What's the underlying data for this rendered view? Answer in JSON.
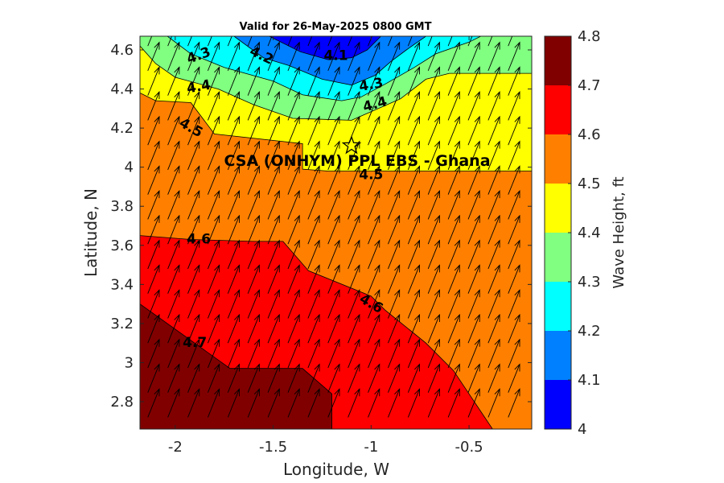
{
  "chart_data": {
    "type": "heatmap",
    "title": "Valid for 26-May-2025 0800 GMT",
    "xlabel": "Longitude, W",
    "ylabel": "Latitude, N",
    "colorbar_label": "Wave Height, ft",
    "xlim": [
      -2.18,
      -0.18
    ],
    "ylim": [
      2.66,
      4.67
    ],
    "x_ticks": [
      -2,
      -1.5,
      -1,
      -0.5
    ],
    "x_tick_labels": [
      "-2",
      "-1.5",
      "-1",
      "-0.5"
    ],
    "y_ticks": [
      2.8,
      3,
      3.2,
      3.4,
      3.6,
      3.8,
      4,
      4.2,
      4.4,
      4.6
    ],
    "y_tick_labels": [
      "2.8",
      "3",
      "3.2",
      "3.4",
      "3.6",
      "3.8",
      "4",
      "4.2",
      "4.4",
      "4.6"
    ],
    "colorbar_ticks": [
      4,
      4.1,
      4.2,
      4.3,
      4.4,
      4.5,
      4.6,
      4.7,
      4.8
    ],
    "colorbar_tick_labels": [
      "4",
      "4.1",
      "4.2",
      "4.3",
      "4.4",
      "4.5",
      "4.6",
      "4.7",
      "4.8"
    ],
    "levels": [
      4.0,
      4.1,
      4.2,
      4.3,
      4.4,
      4.5,
      4.6,
      4.7,
      4.8
    ],
    "colors": [
      "#0000ff",
      "#0080ff",
      "#00ffff",
      "#80ff80",
      "#ffff00",
      "#ff8000",
      "#ff0000",
      "#800000"
    ],
    "contour_bands": [
      {
        "level_min": 4.7,
        "color": "#800000",
        "polygon": [
          [
            -2.18,
            2.66
          ],
          [
            -2.18,
            3.3
          ],
          [
            -1.72,
            2.97
          ],
          [
            -1.35,
            2.97
          ],
          [
            -1.2,
            2.84
          ],
          [
            -1.2,
            2.66
          ]
        ]
      },
      {
        "level_min": 4.6,
        "color": "#ff0000",
        "polygon": [
          [
            -2.18,
            2.66
          ],
          [
            -2.18,
            3.65
          ],
          [
            -1.92,
            3.63
          ],
          [
            -1.6,
            3.62
          ],
          [
            -1.45,
            3.62
          ],
          [
            -1.32,
            3.47
          ],
          [
            -1.0,
            3.34
          ],
          [
            -0.93,
            3.27
          ],
          [
            -0.72,
            3.1
          ],
          [
            -0.58,
            2.96
          ],
          [
            -0.38,
            2.66
          ]
        ]
      },
      {
        "level_min": 4.5,
        "color": "#ff8000",
        "polygon": [
          [
            -2.18,
            2.66
          ],
          [
            -2.18,
            4.38
          ],
          [
            -2.1,
            4.34
          ],
          [
            -1.92,
            4.33
          ],
          [
            -1.8,
            4.17
          ],
          [
            -1.35,
            4.12
          ],
          [
            -1.35,
            3.99
          ],
          [
            -1.22,
            3.98
          ],
          [
            -0.18,
            3.98
          ],
          [
            -0.18,
            2.66
          ]
        ]
      },
      {
        "level_min": 4.4,
        "color": "#ffff00",
        "polygon": [
          [
            -2.18,
            2.66
          ],
          [
            -2.18,
            4.62
          ],
          [
            -2.1,
            4.53
          ],
          [
            -2.0,
            4.46
          ],
          [
            -1.78,
            4.4
          ],
          [
            -1.6,
            4.32
          ],
          [
            -1.4,
            4.25
          ],
          [
            -1.1,
            4.24
          ],
          [
            -0.85,
            4.35
          ],
          [
            -0.72,
            4.45
          ],
          [
            -0.6,
            4.48
          ],
          [
            -0.18,
            4.48
          ],
          [
            -0.18,
            2.66
          ]
        ]
      },
      {
        "level_min": 4.3,
        "color": "#80ff80",
        "polygon": [
          [
            -2.18,
            2.66
          ],
          [
            -2.18,
            4.67
          ],
          [
            -2.04,
            4.67
          ],
          [
            -1.92,
            4.58
          ],
          [
            -1.75,
            4.51
          ],
          [
            -1.5,
            4.44
          ],
          [
            -1.35,
            4.37
          ],
          [
            -1.15,
            4.34
          ],
          [
            -1.05,
            4.36
          ],
          [
            -0.92,
            4.43
          ],
          [
            -0.78,
            4.51
          ],
          [
            -0.67,
            4.58
          ],
          [
            -0.5,
            4.64
          ],
          [
            -0.44,
            4.67
          ],
          [
            -0.18,
            4.67
          ],
          [
            -0.18,
            2.66
          ]
        ]
      },
      {
        "level_min": 4.2,
        "color": "#00ffff",
        "polygon": [
          [
            -2.18,
            2.66
          ],
          [
            -2.18,
            4.67
          ],
          [
            -1.7,
            4.67
          ],
          [
            -1.55,
            4.56
          ],
          [
            -1.42,
            4.52
          ],
          [
            -1.25,
            4.45
          ],
          [
            -1.1,
            4.42
          ],
          [
            -0.98,
            4.47
          ],
          [
            -0.9,
            4.54
          ],
          [
            -0.82,
            4.6
          ],
          [
            -0.72,
            4.67
          ],
          [
            -0.18,
            4.67
          ],
          [
            -0.18,
            2.66
          ]
        ]
      },
      {
        "level_min": 4.1,
        "color": "#0080ff",
        "polygon": [
          [
            -2.18,
            2.66
          ],
          [
            -2.18,
            4.67
          ],
          [
            -1.52,
            4.67
          ],
          [
            -1.36,
            4.59
          ],
          [
            -1.22,
            4.55
          ],
          [
            -1.1,
            4.56
          ],
          [
            -1.02,
            4.6
          ],
          [
            -0.95,
            4.67
          ],
          [
            -0.18,
            4.67
          ],
          [
            -0.18,
            2.66
          ]
        ]
      }
    ],
    "contour_labels": [
      {
        "text": "4.3",
        "x": -1.88,
        "y": 4.57,
        "angle": -20
      },
      {
        "text": "4.2",
        "x": -1.56,
        "y": 4.57,
        "angle": 25
      },
      {
        "text": "4.1",
        "x": -1.18,
        "y": 4.57,
        "angle": 0
      },
      {
        "text": "4.4",
        "x": -1.88,
        "y": 4.41,
        "angle": -10
      },
      {
        "text": "4.3",
        "x": -1.0,
        "y": 4.42,
        "angle": -10
      },
      {
        "text": "4.4",
        "x": -0.98,
        "y": 4.32,
        "angle": -15
      },
      {
        "text": "4.5",
        "x": -1.92,
        "y": 4.2,
        "angle": 30
      },
      {
        "text": "4.5",
        "x": -1.0,
        "y": 3.96,
        "angle": 0
      },
      {
        "text": "4.6",
        "x": -1.88,
        "y": 3.63,
        "angle": 0
      },
      {
        "text": "4.6",
        "x": -1.0,
        "y": 3.3,
        "angle": 30
      },
      {
        "text": "4.7",
        "x": -1.9,
        "y": 3.1,
        "angle": 0
      }
    ],
    "wind_arrows": {
      "direction_deg_from_north": 22,
      "x_start": -2.14,
      "x_end": -0.3,
      "x_count": 19,
      "y_start": 2.72,
      "y_end": 4.62,
      "y_count": 16
    },
    "site": {
      "name": "CSA (ONHYM) PPL EBS  - Ghana",
      "lon": -1.1,
      "lat": 4.11,
      "marker": "star"
    }
  }
}
